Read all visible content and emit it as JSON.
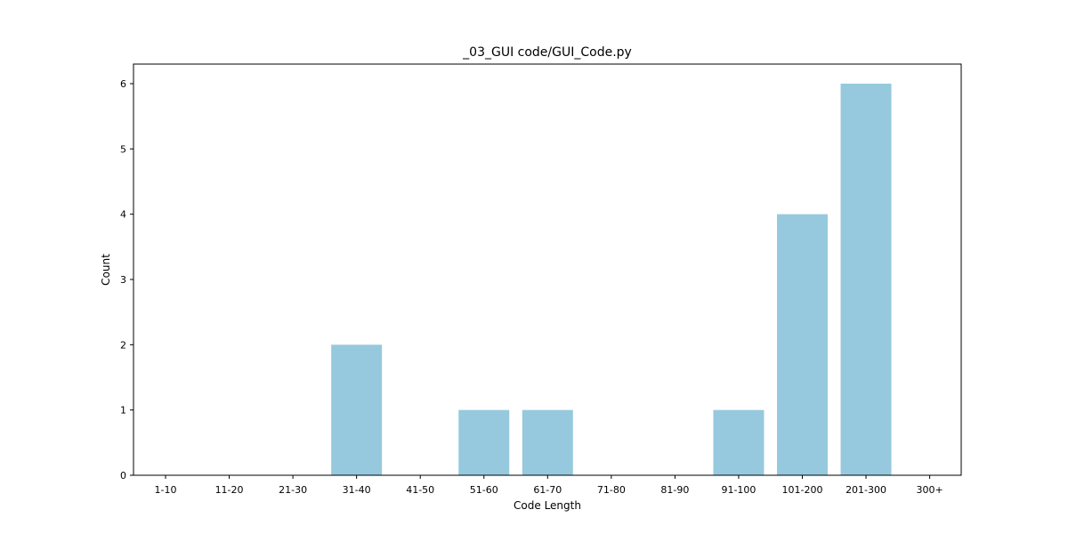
{
  "chart_data": {
    "type": "bar",
    "title": "_03_GUI code/GUI_Code.py",
    "xlabel": "Code Length",
    "ylabel": "Count",
    "categories": [
      "1-10",
      "11-20",
      "21-30",
      "31-40",
      "41-50",
      "51-60",
      "61-70",
      "71-80",
      "81-90",
      "91-100",
      "101-200",
      "201-300",
      "300+"
    ],
    "values": [
      0,
      0,
      0,
      2,
      0,
      1,
      1,
      0,
      0,
      1,
      4,
      6,
      0
    ],
    "ylim": [
      0,
      6.3
    ],
    "yticks": [
      0,
      1,
      2,
      3,
      4,
      5,
      6
    ],
    "bar_color": "#96c9dd",
    "grid": false,
    "legend": "none"
  }
}
